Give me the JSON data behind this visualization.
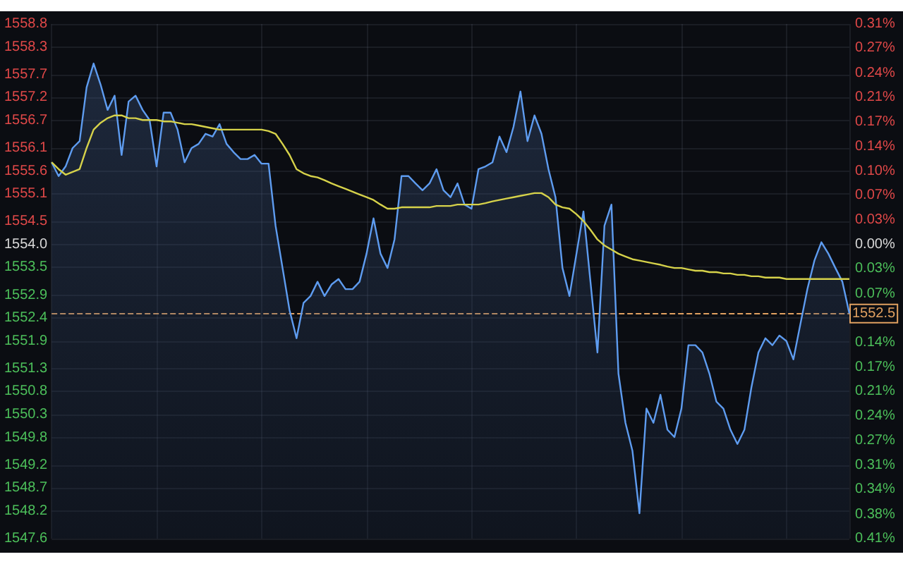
{
  "chart_data": {
    "type": "area",
    "categories": [
      null,
      null,
      null,
      null,
      null,
      null,
      null,
      null,
      null,
      null,
      null,
      null,
      null,
      null,
      null,
      null,
      null,
      null,
      null,
      null,
      null,
      null,
      null,
      null,
      null,
      null,
      null,
      null,
      null,
      null,
      null,
      null,
      null,
      null,
      null,
      null,
      null,
      null,
      null,
      null,
      null,
      null,
      null,
      null,
      null,
      null,
      null,
      null,
      null,
      null,
      null,
      null,
      null,
      null,
      null,
      null,
      null,
      null,
      null,
      null,
      null,
      null,
      null,
      null,
      null,
      null,
      null,
      null,
      null,
      null,
      null,
      null,
      null,
      null,
      null,
      null,
      null,
      null,
      null,
      null,
      null,
      null,
      null,
      null,
      null,
      null,
      null,
      null,
      null,
      null,
      null,
      null,
      null,
      null,
      null,
      null,
      null,
      null,
      null,
      null,
      null,
      null,
      null,
      null,
      null,
      null,
      null,
      null,
      null,
      null,
      null,
      null,
      null,
      null,
      null
    ],
    "series": [
      {
        "color": "#5e9cf0",
        "values": [
          1555.79,
          1555.49,
          1555.7,
          1556.1,
          1556.25,
          1557.42,
          1557.94,
          1557.48,
          1556.93,
          1557.24,
          1555.95,
          1557.11,
          1557.24,
          1556.93,
          1556.71,
          1555.7,
          1556.87,
          1556.87,
          1556.5,
          1555.79,
          1556.1,
          1556.19,
          1556.41,
          1556.35,
          1556.62,
          1556.19,
          1556.01,
          1555.86,
          1555.86,
          1555.95,
          1555.76,
          1555.76,
          1554.41,
          1553.49,
          1552.57,
          1551.96,
          1552.73,
          1552.88,
          1553.19,
          1552.88,
          1553.13,
          1553.25,
          1553.03,
          1553.03,
          1553.19,
          1553.8,
          1554.57,
          1553.8,
          1553.49,
          1554.11,
          1555.49,
          1555.49,
          1555.33,
          1555.18,
          1555.33,
          1555.64,
          1555.18,
          1555.03,
          1555.33,
          1554.87,
          1554.78,
          1555.64,
          1555.7,
          1555.79,
          1556.35,
          1556.01,
          1556.56,
          1557.33,
          1556.25,
          1556.81,
          1556.41,
          1555.64,
          1555.03,
          1553.49,
          1552.88,
          1553.8,
          1554.72,
          1553.19,
          1551.65,
          1554.41,
          1554.87,
          1551.19,
          1550.12,
          1549.51,
          1548.15,
          1550.43,
          1550.12,
          1550.73,
          1549.97,
          1549.81,
          1550.43,
          1551.81,
          1551.81,
          1551.65,
          1551.19,
          1550.58,
          1550.43,
          1549.97,
          1549.66,
          1549.97,
          1550.89,
          1551.65,
          1551.96,
          1551.81,
          1552.02,
          1551.9,
          1551.5,
          1552.27,
          1553.03,
          1553.65,
          1554.05,
          1553.8,
          1553.49,
          1553.19,
          1552.5
        ]
      },
      {
        "type": "line",
        "color": "#d6d24a",
        "values": [
          1555.79,
          1555.64,
          1555.52,
          1555.58,
          1555.64,
          1556.1,
          1556.5,
          1556.65,
          1556.75,
          1556.81,
          1556.81,
          1556.75,
          1556.75,
          1556.71,
          1556.71,
          1556.71,
          1556.68,
          1556.68,
          1556.65,
          1556.62,
          1556.62,
          1556.59,
          1556.56,
          1556.53,
          1556.5,
          1556.5,
          1556.5,
          1556.5,
          1556.5,
          1556.5,
          1556.5,
          1556.47,
          1556.41,
          1556.19,
          1555.95,
          1555.64,
          1555.55,
          1555.49,
          1555.46,
          1555.4,
          1555.33,
          1555.27,
          1555.21,
          1555.15,
          1555.09,
          1555.03,
          1554.97,
          1554.87,
          1554.78,
          1554.78,
          1554.81,
          1554.81,
          1554.81,
          1554.81,
          1554.81,
          1554.84,
          1554.84,
          1554.84,
          1554.87,
          1554.87,
          1554.87,
          1554.87,
          1554.9,
          1554.94,
          1554.97,
          1555.0,
          1555.03,
          1555.06,
          1555.09,
          1555.12,
          1555.12,
          1555.03,
          1554.87,
          1554.81,
          1554.78,
          1554.66,
          1554.51,
          1554.32,
          1554.11,
          1553.98,
          1553.89,
          1553.8,
          1553.74,
          1553.68,
          1553.65,
          1553.62,
          1553.59,
          1553.56,
          1553.52,
          1553.49,
          1553.49,
          1553.46,
          1553.43,
          1553.43,
          1553.4,
          1553.4,
          1553.37,
          1553.37,
          1553.34,
          1553.34,
          1553.31,
          1553.31,
          1553.28,
          1553.28,
          1553.28,
          1553.25,
          1553.25,
          1553.25,
          1553.25,
          1553.25,
          1553.25,
          1553.25,
          1553.25,
          1553.25,
          1553.25
        ]
      }
    ],
    "ylim": [
      1547.6,
      1558.8
    ],
    "yticks": [
      1547.6,
      1548.2,
      1548.7,
      1549.2,
      1549.8,
      1550.3,
      1550.8,
      1551.3,
      1551.9,
      1552.4,
      1552.9,
      1553.5,
      {
        "value": 1554,
        "label": "1554.0"
      },
      1554.5,
      1555.1,
      1555.6,
      1556.1,
      1556.7,
      1557.2,
      1557.7,
      1558.3,
      1558.8
    ],
    "y2lim": [
      -0.412,
      0.309
    ],
    "y2ticks": [
      {
        "value": -0.412,
        "label": "0.41%"
      },
      {
        "value": -0.378,
        "label": "0.38%"
      },
      {
        "value": -0.343,
        "label": "0.34%"
      },
      {
        "value": -0.309,
        "label": "0.31%"
      },
      {
        "value": -0.275,
        "label": "0.27%"
      },
      {
        "value": -0.24,
        "label": "0.24%"
      },
      {
        "value": -0.206,
        "label": "0.21%"
      },
      {
        "value": -0.172,
        "label": "0.17%"
      },
      {
        "value": -0.137,
        "label": "0.14%"
      },
      {
        "value": -0.069,
        "label": "0.07%"
      },
      {
        "value": -0.034,
        "label": "0.03%"
      },
      {
        "value": 0,
        "label": "0.00%"
      },
      {
        "value": 0.034,
        "label": "0.03%"
      },
      {
        "value": 0.069,
        "label": "0.07%"
      },
      {
        "value": 0.103,
        "label": "0.10%"
      },
      {
        "value": 0.137,
        "label": "0.14%"
      },
      {
        "value": 0.172,
        "label": "0.17%"
      },
      {
        "value": 0.206,
        "label": "0.21%"
      },
      {
        "value": 0.24,
        "label": "0.24%"
      },
      {
        "value": 0.275,
        "label": "0.27%"
      },
      {
        "value": 0.309,
        "label": "0.31%"
      }
    ],
    "ref_lines": [
      {
        "axis": "y",
        "value": 1552.5,
        "label": "1552.5",
        "color": "#e0a060",
        "line_style": "dashed"
      }
    ],
    "grid": true
  }
}
